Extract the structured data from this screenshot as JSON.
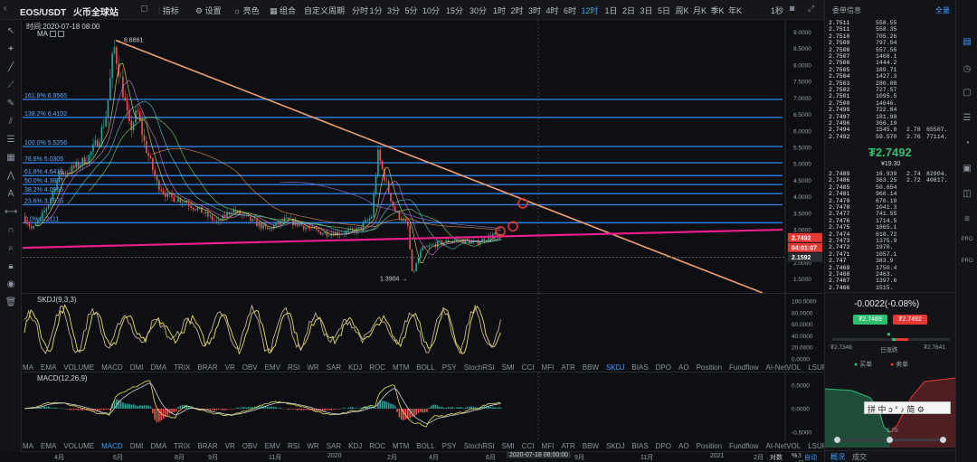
{
  "topbar": {
    "pair": "EOS/USDT",
    "exchange": "火币全球站",
    "buttons": [
      "指标",
      "设置",
      "亮色",
      "组合"
    ],
    "custom_period": "自定义周期",
    "periods": [
      "分时",
      "1分",
      "3分",
      "5分",
      "10分",
      "15分",
      "30分",
      "1时",
      "2时",
      "3时",
      "4时",
      "6时",
      "12时",
      "1日",
      "2日",
      "3日",
      "5日",
      "周K",
      "月K",
      "季K",
      "年K"
    ],
    "active_period": "12时",
    "right_label": "1秒",
    "panel_title": "委单信息",
    "panel_right": "全量"
  },
  "main": {
    "time_label": "时间:2020-07-18 08:00",
    "ma_label": "MA",
    "high_label": "8.6861",
    "low_label": "1.3904",
    "fib": [
      {
        "label": "161.8% 6.9565",
        "price": 6.9565
      },
      {
        "label": "138.2% 6.4102",
        "price": 6.4102
      },
      {
        "label": "100.0% 5.5256",
        "price": 5.5256
      },
      {
        "label": "78.6% 5.0305",
        "price": 5.0305
      },
      {
        "label": "61.8% 4.6419",
        "price": 4.6419
      },
      {
        "label": "50.0% 4.3687",
        "price": 4.3687
      },
      {
        "label": "38.2% 4.0956",
        "price": 4.0956
      },
      {
        "label": "23.6% 3.7575",
        "price": 3.7575
      },
      {
        "label": "0.0% 3.2111",
        "price": 3.2111
      }
    ],
    "y_ticks": [
      "9.0000",
      "8.5000",
      "8.0000",
      "7.5000",
      "7.0000",
      "6.5000",
      "6.0000",
      "5.5000",
      "5.0000",
      "4.5000",
      "4.0000",
      "3.5000",
      "3.0000",
      "2.5000",
      "2.0000",
      "1.5000"
    ],
    "y_values": [
      9.0,
      8.5,
      8.0,
      7.5,
      7.0,
      6.5,
      6.0,
      5.5,
      5.0,
      4.5,
      4.0,
      3.5,
      3.0,
      2.5,
      2.0,
      1.5
    ],
    "price_tag": "2.7492",
    "countdown_tag": "04:01:07",
    "other_tag": "2.1592",
    "colors": {
      "up": "#26a69a",
      "down": "#ef5350",
      "fib": "#2f7fe0",
      "trend": "#f0a070",
      "support": "#e91e8c",
      "marker": "#e53935"
    }
  },
  "kdj": {
    "label": "SKDJ(9,3,3)",
    "y_ticks": [
      "100.0000",
      "80.0000",
      "60.0000",
      "40.0000",
      "20.0000",
      "0.0000"
    ],
    "indicators": [
      "MA",
      "EMA",
      "VOLUME",
      "MACD",
      "DMI",
      "DMA",
      "TRIX",
      "BRAR",
      "VR",
      "OBV",
      "EMV",
      "RSI",
      "WR",
      "SAR",
      "KDJ",
      "ROC",
      "MTM",
      "BOLL",
      "PSY",
      "StochRSI",
      "SMI",
      "CCI",
      "MFI",
      "ATR",
      "BBW",
      "SKDJ",
      "BIAS",
      "DPO",
      "AO",
      "Position",
      "Fundflow",
      "AI-NetVOL",
      "LSUR",
      "BASIS",
      "TVolume",
      "FTBS",
      "TTSI",
      "TTMU"
    ],
    "selected": "SKDJ"
  },
  "macd": {
    "label": "MACD(12,26,9)",
    "y_ticks": [
      "0.5000",
      "0.0000",
      "-0.5000"
    ],
    "indicators": [
      "MA",
      "EMA",
      "VOLUME",
      "MACD",
      "DMI",
      "DMA",
      "TRIX",
      "BRAR",
      "VR",
      "OBV",
      "EMV",
      "RSI",
      "WR",
      "SAR",
      "KDJ",
      "ROC",
      "MTM",
      "BOLL",
      "PSY",
      "StochRSI",
      "SMI",
      "CCI",
      "MFI",
      "ATR",
      "BBW",
      "SKDJ",
      "BIAS",
      "DPO",
      "AO",
      "Position",
      "Fundflow",
      "AI-NetVOL",
      "LSUR",
      "BASIS",
      "TVolume",
      "FTBS",
      "TTSI",
      "TTMU"
    ],
    "selected": "MACD"
  },
  "xaxis": {
    "labels": [
      "4月",
      "6月",
      "8月",
      "9月",
      "11月",
      "2020",
      "2月",
      "4月",
      "6月",
      "9月",
      "11月",
      "2021",
      "2月",
      "3月"
    ],
    "cursor_time": "2020-07-18 08:00:00",
    "right": [
      "对数",
      "%",
      "自动"
    ]
  },
  "orderbook": {
    "asks": [
      [
        "7511",
        "558.55"
      ],
      [
        "7511",
        "558.35"
      ],
      [
        "7510",
        "705.26"
      ],
      [
        "7509",
        "797.54"
      ],
      [
        "7508",
        "557.56"
      ],
      [
        "7507",
        "1468.1"
      ],
      [
        "7506",
        "1444.2"
      ],
      [
        "7505",
        "189.71"
      ],
      [
        "7504",
        "1427.3"
      ],
      [
        "7503",
        "280.08"
      ],
      [
        "7502",
        "727.57"
      ],
      [
        "7501",
        "1095.5"
      ],
      [
        "7500",
        "14646."
      ],
      [
        "7499",
        "722.84"
      ],
      [
        "7497",
        "181.98"
      ],
      [
        "7496",
        "366.19"
      ],
      [
        "7494",
        "1545.8",
        "2.78",
        "65507."
      ],
      [
        "7492",
        "59.570",
        "2.76",
        "77114."
      ]
    ],
    "last_price": "₮2.7492",
    "last_sub": "¥19.30",
    "bids": [
      [
        "7489",
        "16.939",
        "2.74",
        "82904."
      ],
      [
        "7486",
        "363.25",
        "2.72",
        "40817."
      ],
      [
        "7485",
        "50.654"
      ],
      [
        "7481",
        "966.14"
      ],
      [
        "7479",
        "670.19"
      ],
      [
        "7478",
        "1041.3"
      ],
      [
        "7477",
        "741.55"
      ],
      [
        "7476",
        "1714.5"
      ],
      [
        "7475",
        "1865.1"
      ],
      [
        "7474",
        "618.72"
      ],
      [
        "7473",
        "1375.9"
      ],
      [
        "7472",
        "1970."
      ],
      [
        "7471",
        "1057.1"
      ],
      [
        "747",
        "383.9"
      ],
      [
        "7469",
        "1750.4"
      ],
      [
        "7468",
        "2463."
      ],
      [
        "7467",
        "1397.6"
      ],
      [
        "7466",
        "1515."
      ]
    ],
    "price_prefix": "2."
  },
  "ticker": {
    "change": "-0.0022(-0.08%)",
    "bid": "₮2.7489",
    "ask": "₮2.7492",
    "low": "₮2.7348",
    "range_label": "日涨跌",
    "high": "₮2.7641",
    "buy": "买单",
    "sell": "卖单",
    "depth_price": "2.75",
    "tabs": [
      "概况",
      "成交"
    ]
  },
  "overlay": {
    "chars": [
      "拼",
      "中",
      "ɔ",
      "°",
      "♪",
      "简",
      "⚙"
    ]
  }
}
